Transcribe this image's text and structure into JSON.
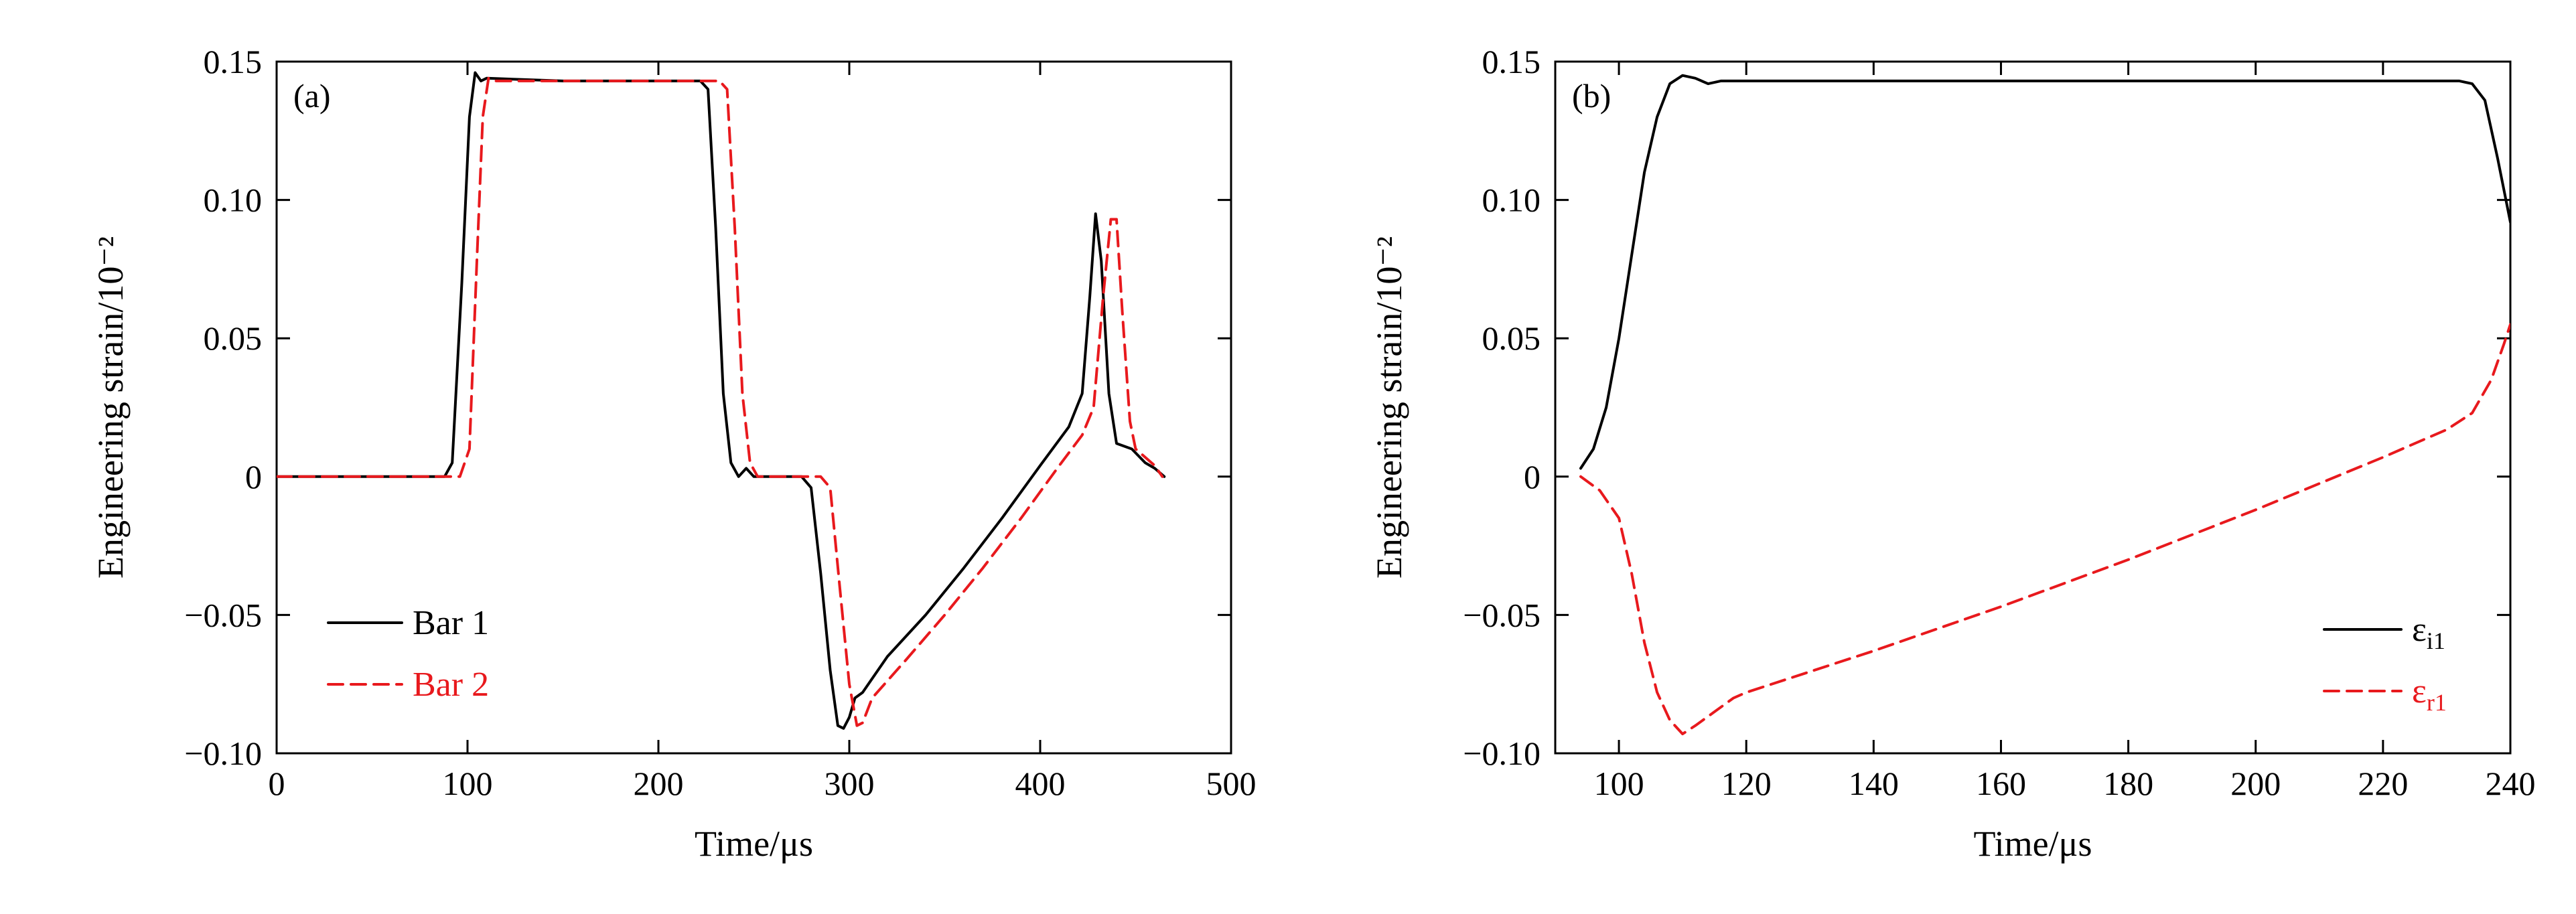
{
  "chart_data": [
    {
      "type": "line",
      "panel_label": "(a)",
      "xlabel": "Time/μs",
      "ylabel": "Engineering strain/10⁻²",
      "xlim": [
        0,
        500
      ],
      "ylim": [
        -0.1,
        0.15
      ],
      "xticks": [
        0,
        100,
        200,
        300,
        400,
        500
      ],
      "xtick_labels": [
        "0",
        "100",
        "200",
        "300",
        "400",
        "500"
      ],
      "yticks": [
        0.15,
        0.1,
        0.05,
        0,
        -0.05,
        -0.1
      ],
      "ytick_labels": [
        "0.15",
        "0.10",
        "0.05",
        "0",
        "−0.05",
        "−0.10"
      ],
      "grid": false,
      "legend_position": "bottom-left",
      "series": [
        {
          "name": "Bar 1",
          "color": "#000000",
          "dash": "solid",
          "points": [
            [
              0,
              0
            ],
            [
              60,
              0
            ],
            [
              88,
              0
            ],
            [
              92,
              0.005
            ],
            [
              97,
              0.07
            ],
            [
              101,
              0.13
            ],
            [
              104,
              0.146
            ],
            [
              107,
              0.143
            ],
            [
              110,
              0.144
            ],
            [
              150,
              0.143
            ],
            [
              200,
              0.143
            ],
            [
              222,
              0.143
            ],
            [
              226,
              0.14
            ],
            [
              230,
              0.09
            ],
            [
              234,
              0.03
            ],
            [
              238,
              0.005
            ],
            [
              242,
              0
            ],
            [
              246,
              0.003
            ],
            [
              250,
              0
            ],
            [
              260,
              0
            ],
            [
              275,
              0
            ],
            [
              280,
              -0.004
            ],
            [
              285,
              -0.035
            ],
            [
              290,
              -0.07
            ],
            [
              294,
              -0.09
            ],
            [
              297,
              -0.091
            ],
            [
              300,
              -0.087
            ],
            [
              303,
              -0.08
            ],
            [
              307,
              -0.078
            ],
            [
              320,
              -0.065
            ],
            [
              340,
              -0.05
            ],
            [
              360,
              -0.033
            ],
            [
              380,
              -0.015
            ],
            [
              400,
              0.004
            ],
            [
              415,
              0.018
            ],
            [
              422,
              0.03
            ],
            [
              426,
              0.065
            ],
            [
              429,
              0.095
            ],
            [
              432,
              0.078
            ],
            [
              436,
              0.03
            ],
            [
              440,
              0.012
            ],
            [
              448,
              0.01
            ],
            [
              455,
              0.005
            ],
            [
              460,
              0.003
            ],
            [
              465,
              0
            ]
          ]
        },
        {
          "name": "Bar 2",
          "color": "#e8191d",
          "dash": "dashed",
          "points": [
            [
              0,
              0
            ],
            [
              70,
              0
            ],
            [
              96,
              0
            ],
            [
              101,
              0.01
            ],
            [
              105,
              0.08
            ],
            [
              108,
              0.13
            ],
            [
              111,
              0.144
            ],
            [
              115,
              0.143
            ],
            [
              150,
              0.143
            ],
            [
              200,
              0.143
            ],
            [
              232,
              0.143
            ],
            [
              236,
              0.14
            ],
            [
              240,
              0.09
            ],
            [
              244,
              0.03
            ],
            [
              248,
              0.005
            ],
            [
              252,
              0
            ],
            [
              260,
              0
            ],
            [
              285,
              0
            ],
            [
              290,
              -0.004
            ],
            [
              295,
              -0.04
            ],
            [
              300,
              -0.075
            ],
            [
              304,
              -0.09
            ],
            [
              307,
              -0.089
            ],
            [
              312,
              -0.08
            ],
            [
              330,
              -0.066
            ],
            [
              350,
              -0.05
            ],
            [
              370,
              -0.033
            ],
            [
              390,
              -0.015
            ],
            [
              410,
              0.004
            ],
            [
              422,
              0.015
            ],
            [
              428,
              0.025
            ],
            [
              433,
              0.065
            ],
            [
              437,
              0.093
            ],
            [
              440,
              0.093
            ],
            [
              443,
              0.06
            ],
            [
              447,
              0.02
            ],
            [
              450,
              0.01
            ],
            [
              455,
              0.007
            ],
            [
              460,
              0.004
            ],
            [
              464,
              0
            ]
          ]
        }
      ]
    },
    {
      "type": "line",
      "panel_label": "(b)",
      "xlabel": "Time/μs",
      "ylabel": "Engineering strain/10⁻²",
      "xlim": [
        90,
        240
      ],
      "ylim": [
        -0.1,
        0.15
      ],
      "xticks": [
        100,
        120,
        140,
        160,
        180,
        200,
        220,
        240
      ],
      "xtick_labels": [
        "100",
        "120",
        "140",
        "160",
        "180",
        "200",
        "220",
        "240"
      ],
      "yticks": [
        0.15,
        0.1,
        0.05,
        0,
        -0.05,
        -0.1
      ],
      "ytick_labels": [
        "0.15",
        "0.10",
        "0.05",
        "0",
        "−0.05",
        "−0.10"
      ],
      "grid": false,
      "legend_position": "bottom-right",
      "series": [
        {
          "name": "εi1",
          "name_base": "ε",
          "name_sub": "i1",
          "color": "#000000",
          "dash": "solid",
          "points": [
            [
              94,
              0.003
            ],
            [
              96,
              0.01
            ],
            [
              98,
              0.025
            ],
            [
              100,
              0.05
            ],
            [
              102,
              0.08
            ],
            [
              104,
              0.11
            ],
            [
              106,
              0.13
            ],
            [
              108,
              0.142
            ],
            [
              110,
              0.145
            ],
            [
              112,
              0.144
            ],
            [
              114,
              0.142
            ],
            [
              116,
              0.143
            ],
            [
              130,
              0.143
            ],
            [
              160,
              0.143
            ],
            [
              200,
              0.143
            ],
            [
              225,
              0.143
            ],
            [
              232,
              0.143
            ],
            [
              234,
              0.142
            ],
            [
              236,
              0.136
            ],
            [
              238,
              0.115
            ],
            [
              240,
              0.092
            ]
          ]
        },
        {
          "name": "εr1",
          "name_base": "ε",
          "name_sub": "r1",
          "color": "#e8191d",
          "dash": "dashed",
          "points": [
            [
              94,
              0
            ],
            [
              97,
              -0.005
            ],
            [
              100,
              -0.015
            ],
            [
              102,
              -0.035
            ],
            [
              104,
              -0.06
            ],
            [
              106,
              -0.078
            ],
            [
              108,
              -0.088
            ],
            [
              110,
              -0.093
            ],
            [
              112,
              -0.09
            ],
            [
              115,
              -0.085
            ],
            [
              118,
              -0.08
            ],
            [
              120,
              -0.078
            ],
            [
              140,
              -0.063
            ],
            [
              160,
              -0.047
            ],
            [
              180,
              -0.03
            ],
            [
              200,
              -0.012
            ],
            [
              220,
              0.007
            ],
            [
              230,
              0.017
            ],
            [
              234,
              0.023
            ],
            [
              237,
              0.035
            ],
            [
              239,
              0.048
            ],
            [
              240,
              0.055
            ]
          ]
        }
      ]
    }
  ]
}
